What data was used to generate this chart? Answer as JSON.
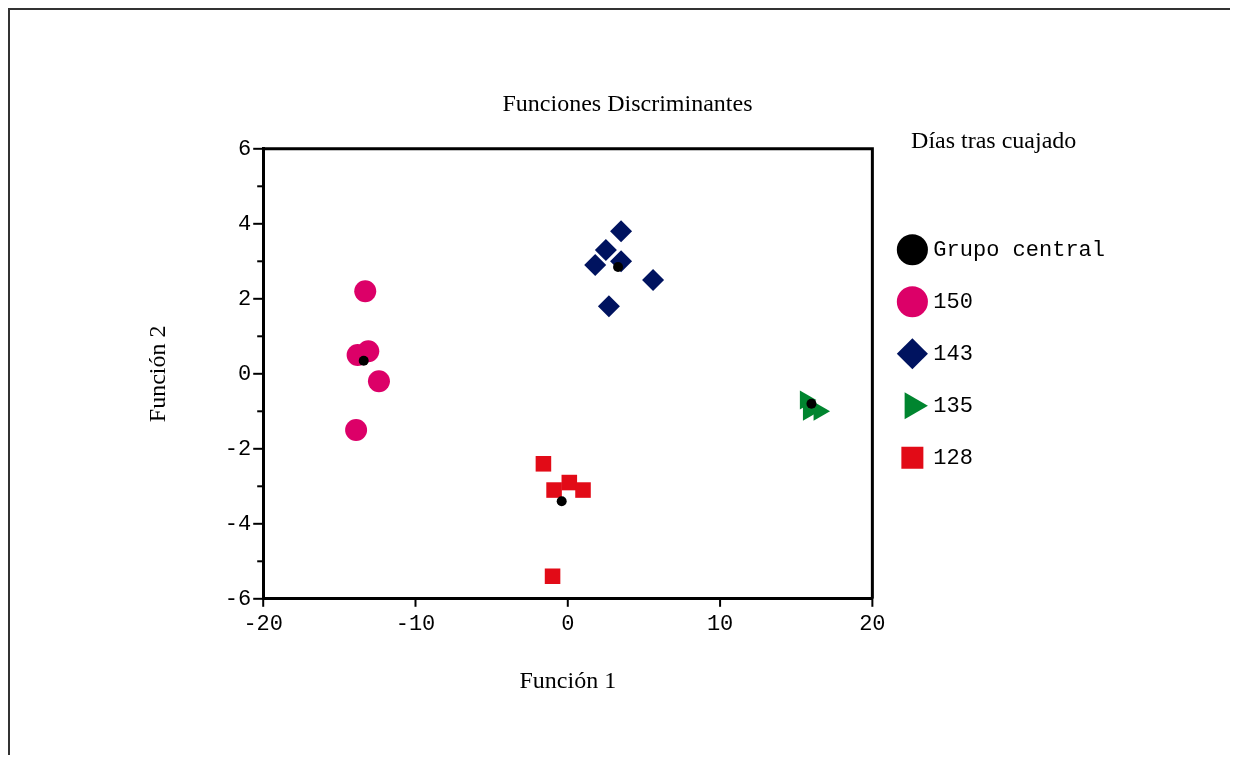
{
  "chart_data": {
    "type": "scatter",
    "title": "Funciones Discriminantes",
    "xlabel": "Función 1",
    "ylabel": "Función 2",
    "legend_title": "Días tras cuajado",
    "xlim": [
      -20,
      20
    ],
    "xticks": [
      -20,
      -10,
      0,
      10,
      20
    ],
    "ylim": [
      -6,
      6
    ],
    "yticks": [
      -6,
      {
        "value": -5,
        "label": null
      },
      -4,
      {
        "value": -3,
        "label": null
      },
      -2,
      {
        "value": -1,
        "label": null
      },
      0,
      {
        "value": 1,
        "label": null
      },
      2,
      {
        "value": 3,
        "label": null
      },
      4,
      {
        "value": 5,
        "label": null
      },
      6
    ],
    "grid": false,
    "legend": "right",
    "series": [
      {
        "name": "Grupo central",
        "color": "#000000",
        "marker": "circle",
        "x": [
          -13.4,
          3.3,
          16.0,
          -0.4
        ],
        "values": [
          0.35,
          2.85,
          -0.8,
          -3.4
        ]
      },
      {
        "name": "150",
        "color": "#dc0068",
        "marker": "circle",
        "x": [
          -13.3,
          -13.8,
          -13.1,
          -12.4,
          -13.9
        ],
        "values": [
          2.2,
          0.5,
          0.6,
          -0.2,
          -1.5
        ]
      },
      {
        "name": "143",
        "color": "#00135f",
        "marker": "diamond",
        "x": [
          3.5,
          2.5,
          1.8,
          3.5,
          5.6,
          2.7
        ],
        "values": [
          3.8,
          3.3,
          2.9,
          3.0,
          2.5,
          1.8
        ]
      },
      {
        "name": "135",
        "color": "#00852f",
        "marker": "triangle",
        "x": [
          15.6,
          15.8,
          16.5
        ],
        "values": [
          -0.7,
          -1.0,
          -1.0
        ]
      },
      {
        "name": "128",
        "color": "#e20b17",
        "marker": "square",
        "x": [
          -1.6,
          -0.9,
          0.1,
          1.0,
          -1.0
        ],
        "values": [
          -2.4,
          -3.1,
          -2.9,
          -3.1,
          -5.4
        ]
      }
    ]
  }
}
